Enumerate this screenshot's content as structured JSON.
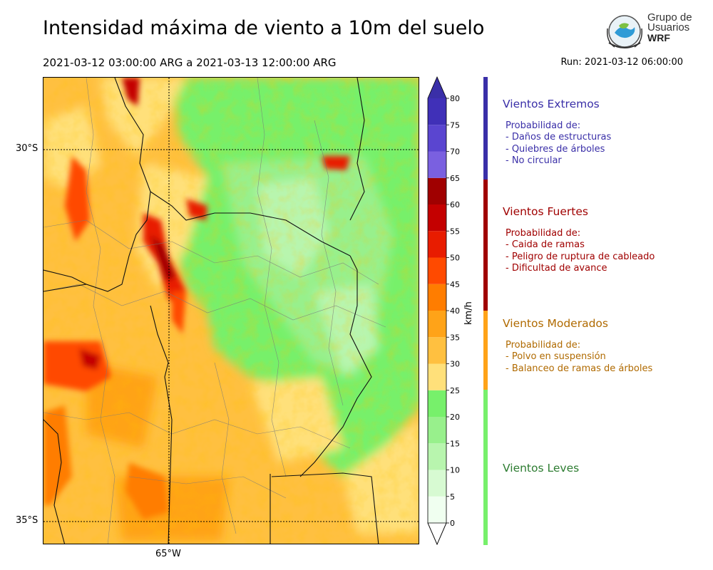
{
  "header": {
    "title": "Intensidad máxima de viento a 10m del suelo",
    "period": "2021-03-12 03:00:00 ARG  a  2021-03-13 12:00:00 ARG",
    "run": "Run: 2021-03-12 06:00:00"
  },
  "logo": {
    "line1": "Grupo de",
    "line2": "Usuarios",
    "line3": "WRF"
  },
  "map": {
    "lat_labels": [
      "30°S",
      "35°S"
    ],
    "lon_labels": [
      "65°W"
    ]
  },
  "colorbar": {
    "ticks": [
      "0",
      "5",
      "10",
      "15",
      "20",
      "25",
      "30",
      "35",
      "40",
      "45",
      "50",
      "55",
      "60",
      "65",
      "70",
      "75",
      "80"
    ],
    "units": "km/h",
    "colors": [
      "#f0fff0",
      "#d7fad2",
      "#b8f5ae",
      "#98f08c",
      "#77f06b",
      "#ffe07a",
      "#ffc040",
      "#ffa318",
      "#ff7d00",
      "#ff4a00",
      "#e81c00",
      "#c40000",
      "#a00000",
      "#7a60e0",
      "#5a45d0",
      "#4030b8"
    ],
    "extend_color": "#3a2fa8"
  },
  "categories": [
    {
      "title": "Vientos Extremos",
      "color": "#3a2fa8",
      "lines": [
        "Probabilidad de:",
        "- Daños de estructuras",
        "- Quiebres de árboles",
        "- No circular"
      ]
    },
    {
      "title": "Vientos Fuertes",
      "color": "#a00000",
      "lines": [
        "Probabilidad de:",
        "- Caida de ramas",
        "- Peligro de ruptura de cableado",
        "- Dificultad de avance"
      ]
    },
    {
      "title": "Vientos Moderados",
      "color": "#b06a00",
      "bar_color": "#ffa318",
      "lines": [
        "Probabilidad de:",
        "- Polvo en suspensión",
        "- Balanceo de ramas de árboles"
      ]
    },
    {
      "title": "Vientos Leves",
      "color": "#2e7d32",
      "bar_color": "#77f06b",
      "lines": []
    }
  ]
}
